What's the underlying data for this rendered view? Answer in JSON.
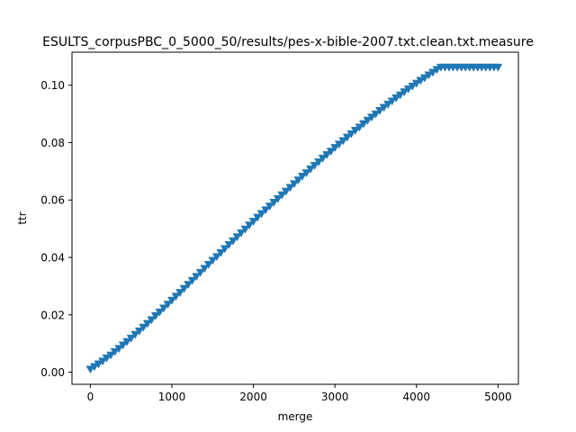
{
  "chart_data": {
    "type": "scatter",
    "title": "ESULTS_corpusPBC_0_5000_50/results/pes-x-bible-2007.txt.clean.txt.measure",
    "xlabel": "merge",
    "ylabel": "ttr",
    "xlim": [
      -225,
      5250
    ],
    "ylim": [
      -0.0042,
      0.1115
    ],
    "xticks": [
      0,
      1000,
      2000,
      3000,
      4000,
      5000
    ],
    "yticks": [
      0.0,
      0.02,
      0.04,
      0.06,
      0.08,
      0.1
    ],
    "xtick_labels": [
      "0",
      "1000",
      "2000",
      "3000",
      "4000",
      "5000"
    ],
    "ytick_labels": [
      "0.00",
      "0.02",
      "0.04",
      "0.06",
      "0.08",
      "0.10"
    ],
    "grid": false,
    "marker": "triangle-down",
    "color": "#1f77b4",
    "series": [
      {
        "x": [
          0,
          50,
          100,
          150,
          200,
          250,
          300,
          350,
          400,
          450,
          500,
          550,
          600,
          650,
          700,
          750,
          800,
          850,
          900,
          950,
          1000,
          1050,
          1100,
          1150,
          1200,
          1250,
          1300,
          1350,
          1400,
          1450,
          1500,
          1550,
          1600,
          1650,
          1700,
          1750,
          1800,
          1850,
          1900,
          1950,
          2000,
          2050,
          2100,
          2150,
          2200,
          2250,
          2300,
          2350,
          2400,
          2450,
          2500,
          2550,
          2600,
          2650,
          2700,
          2750,
          2800,
          2850,
          2900,
          2950,
          3000,
          3050,
          3100,
          3150,
          3200,
          3250,
          3300,
          3350,
          3400,
          3450,
          3500,
          3550,
          3600,
          3650,
          3700,
          3750,
          3800,
          3850,
          3900,
          3950,
          4000,
          4050,
          4100,
          4150,
          4200,
          4250,
          4300,
          4350,
          4400,
          4450,
          4500,
          4550,
          4600,
          4650,
          4700,
          4750,
          4800,
          4850,
          4900,
          4950,
          5000
        ],
        "y": [
          0.001,
          0.0019,
          0.0028,
          0.0038,
          0.0049,
          0.0059,
          0.0071,
          0.0082,
          0.0094,
          0.0106,
          0.0118,
          0.0131,
          0.0143,
          0.0156,
          0.0169,
          0.0182,
          0.0196,
          0.0209,
          0.0223,
          0.0236,
          0.025,
          0.0264,
          0.0277,
          0.0291,
          0.0305,
          0.0319,
          0.0333,
          0.0347,
          0.0361,
          0.0375,
          0.0389,
          0.0402,
          0.0416,
          0.043,
          0.0444,
          0.0457,
          0.0471,
          0.0485,
          0.0498,
          0.0512,
          0.0525,
          0.0539,
          0.0552,
          0.0565,
          0.0578,
          0.0591,
          0.0604,
          0.0617,
          0.063,
          0.0643,
          0.0656,
          0.0669,
          0.0682,
          0.0694,
          0.0707,
          0.072,
          0.0732,
          0.0745,
          0.0757,
          0.0769,
          0.0782,
          0.0794,
          0.0806,
          0.0818,
          0.083,
          0.0842,
          0.0853,
          0.0865,
          0.0877,
          0.0888,
          0.0899,
          0.0911,
          0.0922,
          0.0933,
          0.0944,
          0.0955,
          0.0965,
          0.0976,
          0.0986,
          0.0996,
          0.1006,
          0.1016,
          0.1025,
          0.1035,
          0.1044,
          0.1054,
          0.1062,
          0.1062,
          0.1062,
          0.1062,
          0.1062,
          0.1062,
          0.1062,
          0.1062,
          0.1062,
          0.1062,
          0.1062,
          0.1062,
          0.1062,
          0.1062,
          0.1062
        ]
      }
    ]
  }
}
